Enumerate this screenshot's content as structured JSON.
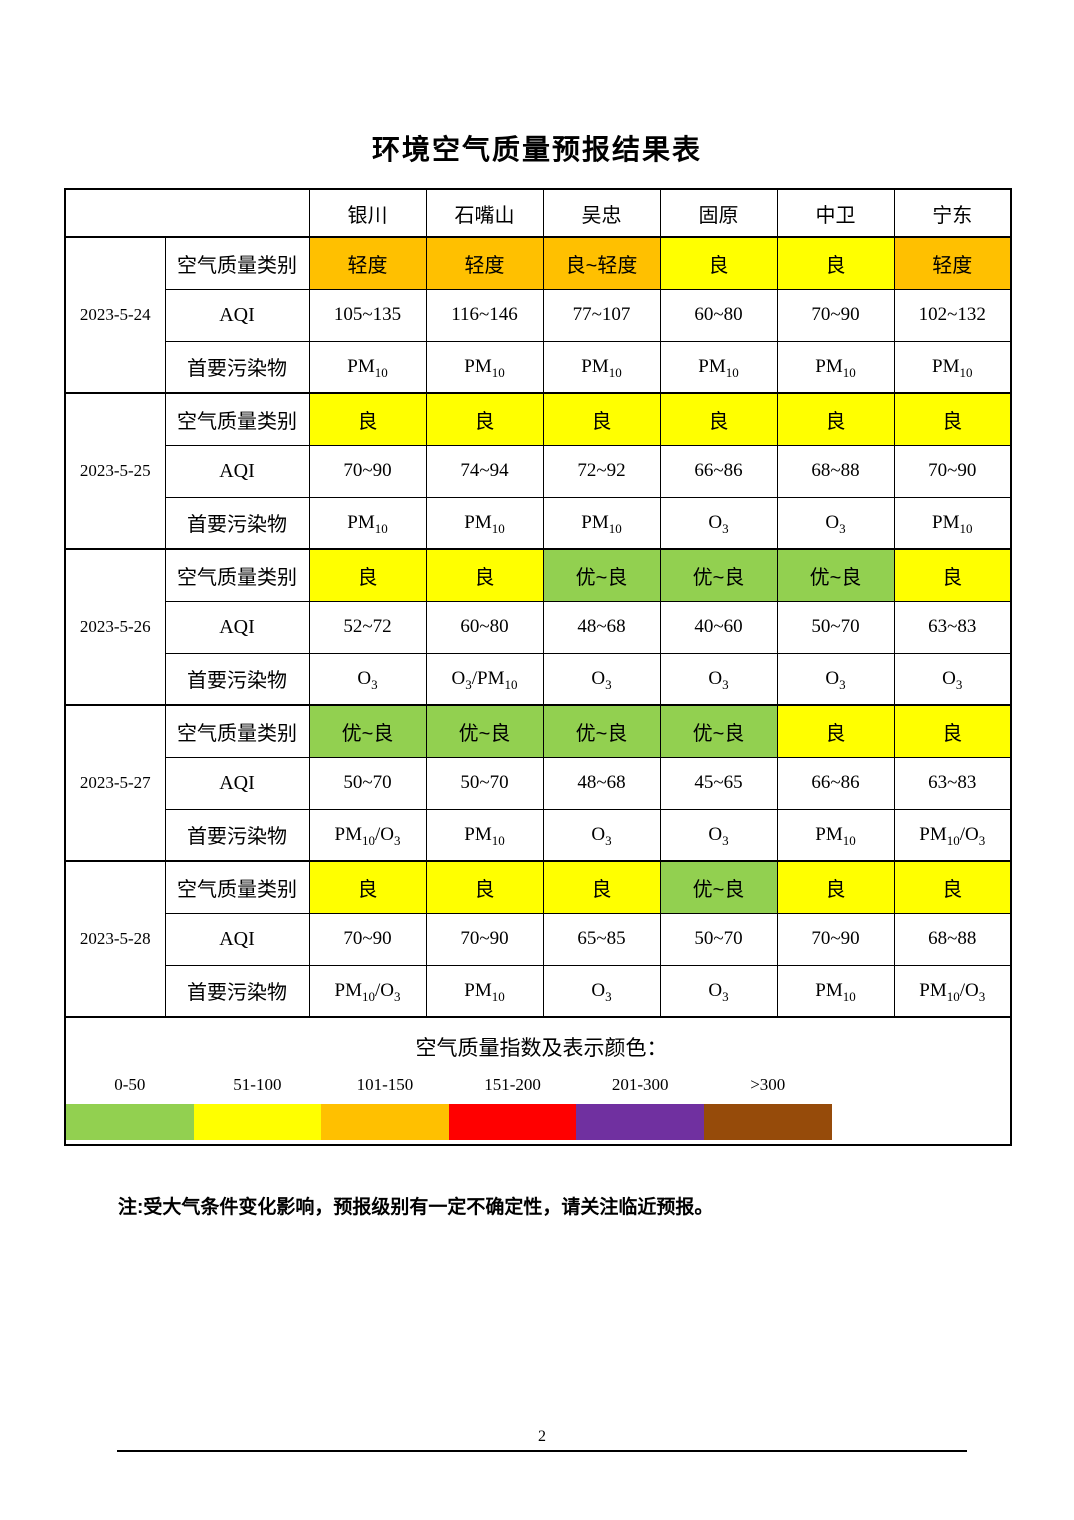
{
  "title": "环境空气质量预报结果表",
  "table": {
    "corner_label": "",
    "cities": [
      "银川",
      "石嘴山",
      "吴忠",
      "固原",
      "中卫",
      "宁东"
    ],
    "row_labels": {
      "category": "空气质量类别",
      "aqi": "AQI",
      "pollutant": "首要污染物"
    },
    "blocks": [
      {
        "date": "2023-5-24",
        "category": [
          {
            "text": "轻度",
            "color": "orange"
          },
          {
            "text": "轻度",
            "color": "orange"
          },
          {
            "text": "良~轻度",
            "color": "orange"
          },
          {
            "text": "良",
            "color": "yellow"
          },
          {
            "text": "良",
            "color": "yellow"
          },
          {
            "text": "轻度",
            "color": "orange"
          }
        ],
        "aqi": [
          "105~135",
          "116~146",
          "77~107",
          "60~80",
          "70~90",
          "102~132"
        ],
        "pollutant": [
          "PM10",
          "PM10",
          "PM10",
          "PM10",
          "PM10",
          "PM10"
        ]
      },
      {
        "date": "2023-5-25",
        "category": [
          {
            "text": "良",
            "color": "yellow"
          },
          {
            "text": "良",
            "color": "yellow"
          },
          {
            "text": "良",
            "color": "yellow"
          },
          {
            "text": "良",
            "color": "yellow"
          },
          {
            "text": "良",
            "color": "yellow"
          },
          {
            "text": "良",
            "color": "yellow"
          }
        ],
        "aqi": [
          "70~90",
          "74~94",
          "72~92",
          "66~86",
          "68~88",
          "70~90"
        ],
        "pollutant": [
          "PM10",
          "PM10",
          "PM10",
          "O3",
          "O3",
          "PM10"
        ]
      },
      {
        "date": "2023-5-26",
        "category": [
          {
            "text": "良",
            "color": "yellow"
          },
          {
            "text": "良",
            "color": "yellow"
          },
          {
            "text": "优~良",
            "color": "green"
          },
          {
            "text": "优~良",
            "color": "green"
          },
          {
            "text": "优~良",
            "color": "green"
          },
          {
            "text": "良",
            "color": "yellow"
          }
        ],
        "aqi": [
          "52~72",
          "60~80",
          "48~68",
          "40~60",
          "50~70",
          "63~83"
        ],
        "pollutant": [
          "O3",
          "O3/PM10",
          "O3",
          "O3",
          "O3",
          "O3"
        ]
      },
      {
        "date": "2023-5-27",
        "category": [
          {
            "text": "优~良",
            "color": "green"
          },
          {
            "text": "优~良",
            "color": "green"
          },
          {
            "text": "优~良",
            "color": "green"
          },
          {
            "text": "优~良",
            "color": "green"
          },
          {
            "text": "良",
            "color": "yellow"
          },
          {
            "text": "良",
            "color": "yellow"
          }
        ],
        "aqi": [
          "50~70",
          "50~70",
          "48~68",
          "45~65",
          "66~86",
          "63~83"
        ],
        "pollutant": [
          "PM10/O3",
          "PM10",
          "O3",
          "O3",
          "PM10",
          "PM10/O3"
        ]
      },
      {
        "date": "2023-5-28",
        "category": [
          {
            "text": "良",
            "color": "yellow"
          },
          {
            "text": "良",
            "color": "yellow"
          },
          {
            "text": "良",
            "color": "yellow"
          },
          {
            "text": "优~良",
            "color": "green"
          },
          {
            "text": "良",
            "color": "yellow"
          },
          {
            "text": "良",
            "color": "yellow"
          }
        ],
        "aqi": [
          "70~90",
          "70~90",
          "65~85",
          "50~70",
          "70~90",
          "68~88"
        ],
        "pollutant": [
          "PM10/O3",
          "PM10",
          "O3",
          "O3",
          "PM10",
          "PM10/O3"
        ]
      }
    ]
  },
  "category_colors": {
    "orange": "#FFC000",
    "yellow": "#FFFF00",
    "green": "#92D050"
  },
  "legend": {
    "title": "空气质量指数及表示颜色：",
    "ranges": [
      {
        "label": "0-50",
        "color": "#92D050"
      },
      {
        "label": "51-100",
        "color": "#FFFF00"
      },
      {
        "label": "101-150",
        "color": "#FFC000"
      },
      {
        "label": "151-200",
        "color": "#FF0000"
      },
      {
        "label": "201-300",
        "color": "#7030A0"
      },
      {
        "label": ">300",
        "color": "#964B0A"
      }
    ]
  },
  "note": "注:受大气条件变化影响，预报级别有一定不确定性，请关注临近预报。",
  "footer": {
    "page_number": "2"
  }
}
